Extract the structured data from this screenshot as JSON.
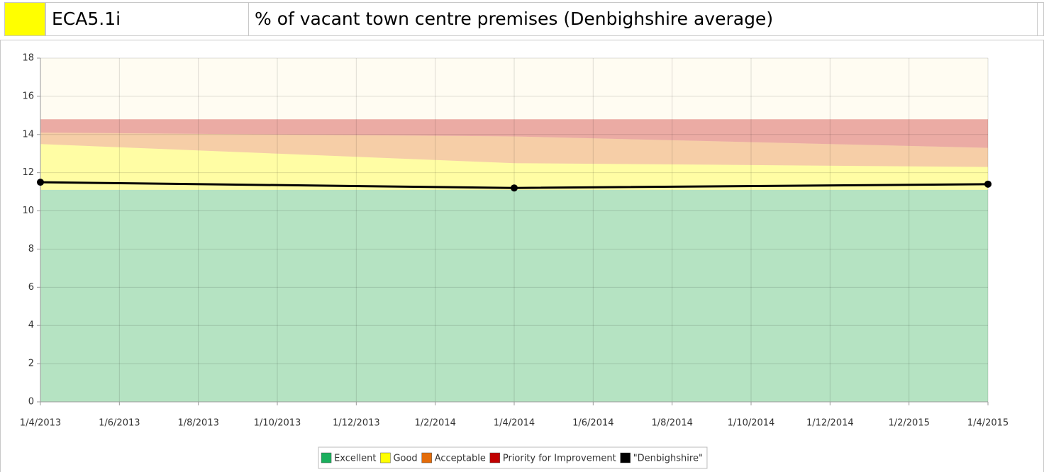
{
  "header": {
    "code": "ECA5.1i",
    "title": "% of vacant town centre premises (Denbighshire average)"
  },
  "chart_data": {
    "type": "area",
    "x": [
      "1/4/2013",
      "1/4/2014",
      "1/4/2015"
    ],
    "xlim": [
      "1/4/2013",
      "1/4/2015"
    ],
    "xticks": [
      "1/4/2013",
      "1/6/2013",
      "1/8/2013",
      "1/10/2013",
      "1/12/2013",
      "1/2/2014",
      "1/4/2014",
      "1/6/2014",
      "1/8/2014",
      "1/10/2014",
      "1/12/2014",
      "1/2/2015",
      "1/4/2015"
    ],
    "ylim": [
      0,
      18
    ],
    "yticks": [
      0,
      2,
      4,
      6,
      8,
      10,
      12,
      14,
      16,
      18
    ],
    "grid": true,
    "legend": "bottom",
    "series": [
      {
        "name": "Excellent",
        "type": "area",
        "color": "#1aaf5d",
        "values": [
          11.1,
          11.1,
          11.1
        ]
      },
      {
        "name": "Good",
        "type": "area",
        "color": "#ffff00",
        "values": [
          2.4,
          1.4,
          1.2
        ]
      },
      {
        "name": "Acceptable",
        "type": "area",
        "color": "#e36c0a",
        "values": [
          0.6,
          1.4,
          1.0
        ]
      },
      {
        "name": "Priority for Improvement",
        "type": "area",
        "color": "#c00000",
        "values": [
          0.7,
          0.9,
          1.5
        ]
      },
      {
        "name": "\"Denbighshire\"",
        "type": "line",
        "color": "#000000",
        "values": [
          11.5,
          11.2,
          11.4
        ]
      }
    ]
  }
}
